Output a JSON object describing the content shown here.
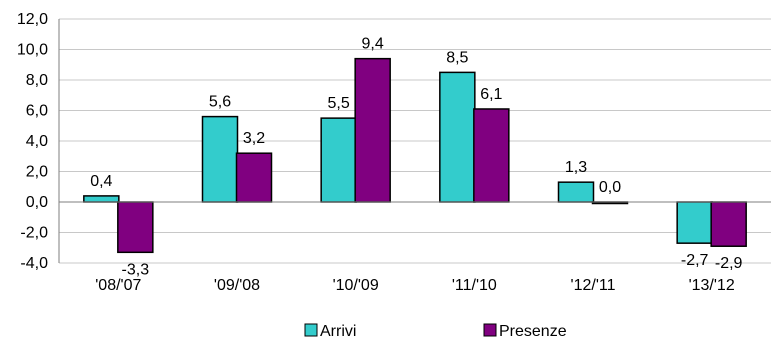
{
  "chart_data": {
    "type": "bar",
    "categories": [
      "'08/'07",
      "'09/'08",
      "'10/'09",
      "'11/'10",
      "'12/'11",
      "'13/'12"
    ],
    "series": [
      {
        "name": "Arrivi",
        "values": [
          0.4,
          5.6,
          5.5,
          8.5,
          1.3,
          -2.7
        ],
        "color": "#33CCCC",
        "labels": [
          "0,4",
          "5,6",
          "5,5",
          "8,5",
          "1,3",
          "-2,7"
        ]
      },
      {
        "name": "Presenze",
        "values": [
          -3.3,
          3.2,
          9.4,
          6.1,
          0.0,
          -2.9
        ],
        "color": "#800080",
        "labels": [
          "-3,3",
          "3,2",
          "9,4",
          "6,1",
          "0,0",
          "-2,9"
        ]
      }
    ],
    "ylim": [
      -4,
      12
    ],
    "yticks": [
      12,
      10,
      8,
      6,
      4,
      2,
      0,
      -2,
      -4
    ],
    "ytick_labels": [
      "12,0",
      "10,0",
      "8,0",
      "6,0",
      "4,0",
      "2,0",
      "0,0",
      "-2,0",
      "-4,0"
    ],
    "title": "",
    "xlabel": "",
    "ylabel": "",
    "grid": true,
    "legend_position": "bottom"
  }
}
